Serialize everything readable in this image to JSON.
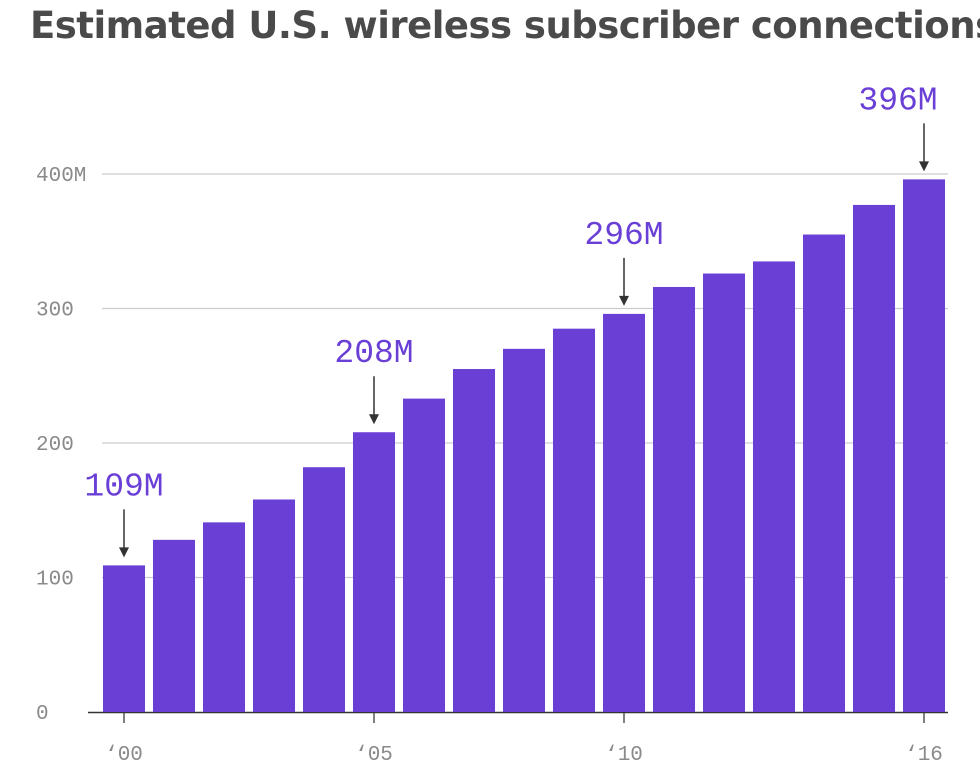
{
  "chart_data": {
    "type": "bar",
    "title": "Estimated U.S. wireless subscriber connections",
    "xlabel": "",
    "ylabel": "",
    "categories": [
      "2000",
      "2001",
      "2002",
      "2003",
      "2004",
      "2005",
      "2006",
      "2007",
      "2008",
      "2009",
      "2010",
      "2011",
      "2012",
      "2013",
      "2014",
      "2015",
      "2016"
    ],
    "values": [
      109,
      128,
      141,
      158,
      182,
      208,
      233,
      255,
      270,
      285,
      296,
      316,
      326,
      335,
      355,
      377,
      396
    ],
    "ylim": [
      0,
      400
    ],
    "yticks": [
      {
        "value": 0,
        "label": "0"
      },
      {
        "value": 100,
        "label": "100"
      },
      {
        "value": 200,
        "label": "200"
      },
      {
        "value": 300,
        "label": "300"
      },
      {
        "value": 400,
        "label": "400M"
      }
    ],
    "xticks": [
      {
        "index": 0,
        "label": "‘00"
      },
      {
        "index": 5,
        "label": "‘05"
      },
      {
        "index": 10,
        "label": "‘10"
      },
      {
        "index": 16,
        "label": "‘16"
      }
    ],
    "annotations": [
      {
        "index": 0,
        "label": "109M"
      },
      {
        "index": 5,
        "label": "208M"
      },
      {
        "index": 10,
        "label": "296M"
      },
      {
        "index": 16,
        "label": "396M"
      }
    ],
    "grid": true,
    "colors": {
      "bar": "#6a3fd6",
      "annotation": "#6a3fd6",
      "grid": "#cccccc",
      "tick": "#8a8a8a",
      "arrow": "#333333",
      "title": "#4a4a4a"
    }
  }
}
